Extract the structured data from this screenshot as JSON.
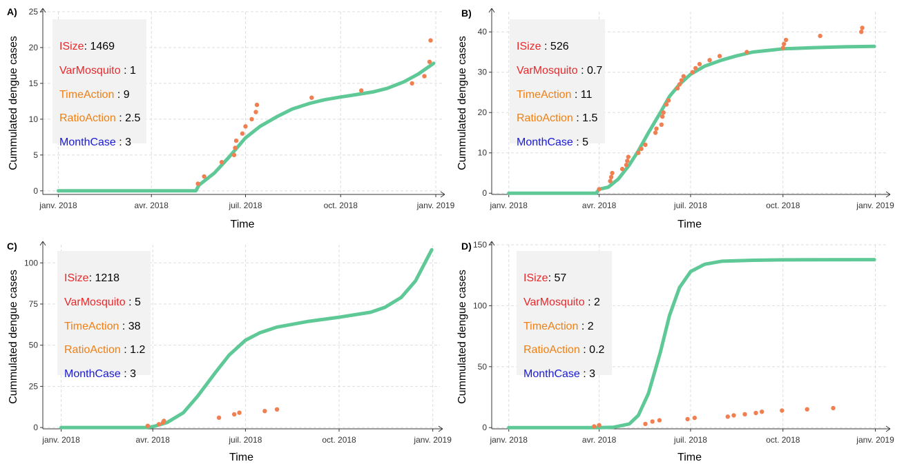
{
  "colors": {
    "fit_line": "#5ec996",
    "points": "#f07f52",
    "grid": "#dddddd",
    "panel_bg": "#ffffff",
    "annotation_box": "#f2f2f2",
    "isize": "#e8282a",
    "varmosquito": "#e8282a",
    "timeaction": "#f07f14",
    "ratioaction": "#f07f14",
    "monthcase": "#1a1ad6"
  },
  "chart_data": [
    {
      "type": "scatter",
      "panel_label": "A)",
      "xlabel": "Time",
      "ylabel": "Cummulated dengue cases",
      "x_ticks": [
        {
          "date": "2018-01-01",
          "label": "janv. 2018"
        },
        {
          "date": "2018-04-01",
          "label": "avr. 2018"
        },
        {
          "date": "2018-07-01",
          "label": "juil. 2018"
        },
        {
          "date": "2018-10-01",
          "label": "oct. 2018"
        },
        {
          "date": "2019-01-01",
          "label": "janv. 2019"
        }
      ],
      "xlim": [
        "2017-12-17",
        "2019-01-07"
      ],
      "y_ticks": [
        0,
        5,
        10,
        15,
        20,
        25
      ],
      "ylim": [
        -0.5,
        25
      ],
      "grid": true,
      "annotation": {
        "lines": [
          {
            "key": "ISize",
            "sep": ": ",
            "value": "1469",
            "color_key": "isize"
          },
          {
            "key": "VarMosquito",
            "sep": " : ",
            "value": "1",
            "color_key": "varmosquito"
          },
          {
            "key": "TimeAction",
            "sep": " : ",
            "value": "9",
            "color_key": "timeaction"
          },
          {
            "key": "RatioAction",
            "sep": " : ",
            "value": "2.5",
            "color_key": "ratioaction"
          },
          {
            "key": "MonthCase",
            "sep": " : ",
            "value": "3",
            "color_key": "monthcase"
          }
        ]
      },
      "series": [
        {
          "kind": "line",
          "points": [
            [
              "2018-01-01",
              0
            ],
            [
              "2018-05-14",
              0
            ],
            [
              "2018-05-17",
              0.8
            ],
            [
              "2018-06-01",
              2.5
            ],
            [
              "2018-06-15",
              4.7
            ],
            [
              "2018-07-01",
              7.4
            ],
            [
              "2018-07-15",
              9.0
            ],
            [
              "2018-08-01",
              10.4
            ],
            [
              "2018-08-15",
              11.4
            ],
            [
              "2018-09-01",
              12.2
            ],
            [
              "2018-09-15",
              12.7
            ],
            [
              "2018-10-01",
              13.1
            ],
            [
              "2018-10-15",
              13.4
            ],
            [
              "2018-11-01",
              13.8
            ],
            [
              "2018-11-15",
              14.3
            ],
            [
              "2018-12-01",
              15.2
            ],
            [
              "2018-12-15",
              16.3
            ],
            [
              "2018-12-30",
              17.8
            ]
          ]
        },
        {
          "kind": "points",
          "points": [
            [
              "2018-05-16",
              1
            ],
            [
              "2018-05-22",
              2
            ],
            [
              "2018-06-08",
              4
            ],
            [
              "2018-06-20",
              5
            ],
            [
              "2018-06-21",
              6
            ],
            [
              "2018-06-22",
              7
            ],
            [
              "2018-06-28",
              8
            ],
            [
              "2018-07-01",
              9
            ],
            [
              "2018-07-07",
              10
            ],
            [
              "2018-07-11",
              11
            ],
            [
              "2018-07-12",
              12
            ],
            [
              "2018-09-03",
              13
            ],
            [
              "2018-10-21",
              14
            ],
            [
              "2018-12-09",
              15
            ],
            [
              "2018-12-21",
              16
            ],
            [
              "2018-12-26",
              18
            ],
            [
              "2018-12-27",
              21
            ]
          ]
        }
      ]
    },
    {
      "type": "scatter",
      "panel_label": "B)",
      "xlabel": "Time",
      "ylabel": "Cummulated dengue cases",
      "x_ticks": [
        {
          "date": "2018-01-01",
          "label": "janv. 2018"
        },
        {
          "date": "2018-04-01",
          "label": "avr. 2018"
        },
        {
          "date": "2018-07-01",
          "label": "juil. 2018"
        },
        {
          "date": "2018-10-01",
          "label": "oct. 2018"
        },
        {
          "date": "2019-01-01",
          "label": "janv. 2019"
        }
      ],
      "xlim": [
        "2017-12-15",
        "2019-01-13"
      ],
      "y_ticks": [
        0,
        10,
        20,
        30,
        40
      ],
      "ylim": [
        -0.3,
        45
      ],
      "grid": true,
      "annotation": {
        "lines": [
          {
            "key": "ISize",
            "sep": " : ",
            "value": "526",
            "color_key": "isize"
          },
          {
            "key": "VarMosquito",
            "sep": " : ",
            "value": "0.7",
            "color_key": "varmosquito"
          },
          {
            "key": "TimeAction",
            "sep": " : ",
            "value": "11",
            "color_key": "timeaction"
          },
          {
            "key": "RatioAction",
            "sep": " : ",
            "value": "1.5",
            "color_key": "ratioaction"
          },
          {
            "key": "MonthCase",
            "sep": " : ",
            "value": "5",
            "color_key": "monthcase"
          }
        ]
      },
      "series": [
        {
          "kind": "line",
          "points": [
            [
              "2018-01-01",
              0
            ],
            [
              "2018-03-29",
              0
            ],
            [
              "2018-04-01",
              1
            ],
            [
              "2018-04-10",
              1.5
            ],
            [
              "2018-04-20",
              3.5
            ],
            [
              "2018-05-01",
              7
            ],
            [
              "2018-05-10",
              10.5
            ],
            [
              "2018-05-20",
              15
            ],
            [
              "2018-06-01",
              20
            ],
            [
              "2018-06-10",
              24
            ],
            [
              "2018-06-20",
              27
            ],
            [
              "2018-07-01",
              29.5
            ],
            [
              "2018-07-15",
              31.5
            ],
            [
              "2018-08-01",
              33
            ],
            [
              "2018-08-15",
              34
            ],
            [
              "2018-09-01",
              35
            ],
            [
              "2018-10-01",
              35.8
            ],
            [
              "2018-11-01",
              36.1
            ],
            [
              "2018-12-01",
              36.3
            ],
            [
              "2018-12-31",
              36.4
            ]
          ]
        },
        {
          "kind": "points",
          "points": [
            [
              "2018-04-01",
              1
            ],
            [
              "2018-04-12",
              3
            ],
            [
              "2018-04-13",
              4
            ],
            [
              "2018-04-14",
              5
            ],
            [
              "2018-04-24",
              6
            ],
            [
              "2018-04-28",
              7
            ],
            [
              "2018-04-29",
              8
            ],
            [
              "2018-04-30",
              9
            ],
            [
              "2018-05-10",
              10
            ],
            [
              "2018-05-13",
              11
            ],
            [
              "2018-05-17",
              12
            ],
            [
              "2018-05-27",
              15
            ],
            [
              "2018-05-28",
              16
            ],
            [
              "2018-06-02",
              17
            ],
            [
              "2018-06-03",
              19
            ],
            [
              "2018-06-04",
              20
            ],
            [
              "2018-06-07",
              22
            ],
            [
              "2018-06-09",
              23
            ],
            [
              "2018-06-18",
              26
            ],
            [
              "2018-06-20",
              27
            ],
            [
              "2018-06-22",
              28
            ],
            [
              "2018-06-24",
              29
            ],
            [
              "2018-07-03",
              30
            ],
            [
              "2018-07-06",
              31
            ],
            [
              "2018-07-10",
              32
            ],
            [
              "2018-07-20",
              33
            ],
            [
              "2018-07-30",
              34
            ],
            [
              "2018-08-26",
              35
            ],
            [
              "2018-10-01",
              36
            ],
            [
              "2018-10-02",
              37
            ],
            [
              "2018-10-04",
              38
            ],
            [
              "2018-11-07",
              39
            ],
            [
              "2018-12-18",
              40
            ],
            [
              "2018-12-19",
              41
            ]
          ]
        }
      ]
    },
    {
      "type": "scatter",
      "panel_label": "C)",
      "xlabel": "Time",
      "ylabel": "Cummulated dengue cases",
      "x_ticks": [
        {
          "date": "2018-01-01",
          "label": "janv. 2018"
        },
        {
          "date": "2018-04-01",
          "label": "avr. 2018"
        },
        {
          "date": "2018-07-01",
          "label": "juil. 2018"
        },
        {
          "date": "2018-10-01",
          "label": "oct. 2018"
        },
        {
          "date": "2019-01-01",
          "label": "janv. 2019"
        }
      ],
      "xlim": [
        "2017-12-14",
        "2019-01-08"
      ],
      "y_ticks": [
        0,
        25,
        50,
        75,
        100
      ],
      "ylim": [
        -0.8,
        111
      ],
      "grid": true,
      "annotation": {
        "lines": [
          {
            "key": "ISize",
            "sep": ": ",
            "value": "1218",
            "color_key": "isize"
          },
          {
            "key": "VarMosquito",
            "sep": " : ",
            "value": "5",
            "color_key": "varmosquito"
          },
          {
            "key": "TimeAction",
            "sep": " : ",
            "value": "38",
            "color_key": "timeaction"
          },
          {
            "key": "RatioAction",
            "sep": " : ",
            "value": "1.2",
            "color_key": "ratioaction"
          },
          {
            "key": "MonthCase",
            "sep": " : ",
            "value": "3",
            "color_key": "monthcase"
          }
        ]
      },
      "series": [
        {
          "kind": "line",
          "points": [
            [
              "2018-01-01",
              0
            ],
            [
              "2018-03-25",
              0
            ],
            [
              "2018-04-01",
              0.5
            ],
            [
              "2018-04-15",
              3
            ],
            [
              "2018-05-01",
              9
            ],
            [
              "2018-05-15",
              19
            ],
            [
              "2018-06-01",
              33
            ],
            [
              "2018-06-15",
              44
            ],
            [
              "2018-07-01",
              53
            ],
            [
              "2018-07-15",
              57.5
            ],
            [
              "2018-08-01",
              61
            ],
            [
              "2018-09-01",
              64.5
            ],
            [
              "2018-10-01",
              67
            ],
            [
              "2018-11-01",
              70
            ],
            [
              "2018-11-15",
              73
            ],
            [
              "2018-12-01",
              79
            ],
            [
              "2018-12-15",
              89
            ],
            [
              "2018-12-31",
              108
            ]
          ]
        },
        {
          "kind": "points",
          "points": [
            [
              "2018-03-27",
              1
            ],
            [
              "2018-04-07",
              2
            ],
            [
              "2018-04-11",
              3
            ],
            [
              "2018-04-12",
              4
            ],
            [
              "2018-06-05",
              6
            ],
            [
              "2018-06-20",
              8
            ],
            [
              "2018-06-25",
              9
            ],
            [
              "2018-07-20",
              10
            ],
            [
              "2018-08-01",
              11
            ]
          ]
        }
      ]
    },
    {
      "type": "scatter",
      "panel_label": "D)",
      "xlabel": "Time",
      "ylabel": "Cummulated dengue cases",
      "x_ticks": [
        {
          "date": "2018-01-01",
          "label": "janv. 2018"
        },
        {
          "date": "2018-04-01",
          "label": "avr. 2018"
        },
        {
          "date": "2018-07-01",
          "label": "juil. 2018"
        },
        {
          "date": "2018-10-01",
          "label": "oct. 2018"
        },
        {
          "date": "2019-01-01",
          "label": "janv. 2019"
        }
      ],
      "xlim": [
        "2017-12-15",
        "2019-01-13"
      ],
      "y_ticks": [
        0,
        50,
        100,
        150
      ],
      "ylim": [
        -1,
        150
      ],
      "grid": true,
      "annotation": {
        "lines": [
          {
            "key": "ISize",
            "sep": ": ",
            "value": "57",
            "color_key": "isize"
          },
          {
            "key": "VarMosquito",
            "sep": " : ",
            "value": "2",
            "color_key": "varmosquito"
          },
          {
            "key": "TimeAction",
            "sep": " : ",
            "value": "2",
            "color_key": "timeaction"
          },
          {
            "key": "RatioAction",
            "sep": " : ",
            "value": "0.2",
            "color_key": "ratioaction"
          },
          {
            "key": "MonthCase",
            "sep": " : ",
            "value": "3",
            "color_key": "monthcase"
          }
        ]
      },
      "series": [
        {
          "kind": "line",
          "points": [
            [
              "2018-01-01",
              0
            ],
            [
              "2018-04-01",
              0
            ],
            [
              "2018-04-15",
              0.3
            ],
            [
              "2018-05-01",
              3
            ],
            [
              "2018-05-10",
              10
            ],
            [
              "2018-05-20",
              28
            ],
            [
              "2018-06-01",
              62
            ],
            [
              "2018-06-10",
              92
            ],
            [
              "2018-06-20",
              115
            ],
            [
              "2018-07-01",
              128
            ],
            [
              "2018-07-15",
              134
            ],
            [
              "2018-08-01",
              136.5
            ],
            [
              "2018-09-01",
              137.3
            ],
            [
              "2018-10-01",
              137.6
            ],
            [
              "2018-11-01",
              137.7
            ],
            [
              "2018-12-31",
              137.8
            ]
          ]
        },
        {
          "kind": "points",
          "points": [
            [
              "2018-03-27",
              1
            ],
            [
              "2018-04-01",
              2
            ],
            [
              "2018-05-17",
              3
            ],
            [
              "2018-05-24",
              5
            ],
            [
              "2018-05-31",
              6
            ],
            [
              "2018-06-28",
              7
            ],
            [
              "2018-07-05",
              8
            ],
            [
              "2018-08-07",
              9
            ],
            [
              "2018-08-13",
              10
            ],
            [
              "2018-08-24",
              11
            ],
            [
              "2018-09-04",
              12
            ],
            [
              "2018-09-10",
              13
            ],
            [
              "2018-09-30",
              14
            ],
            [
              "2018-10-25",
              15
            ],
            [
              "2018-11-20",
              16
            ]
          ]
        }
      ]
    }
  ]
}
